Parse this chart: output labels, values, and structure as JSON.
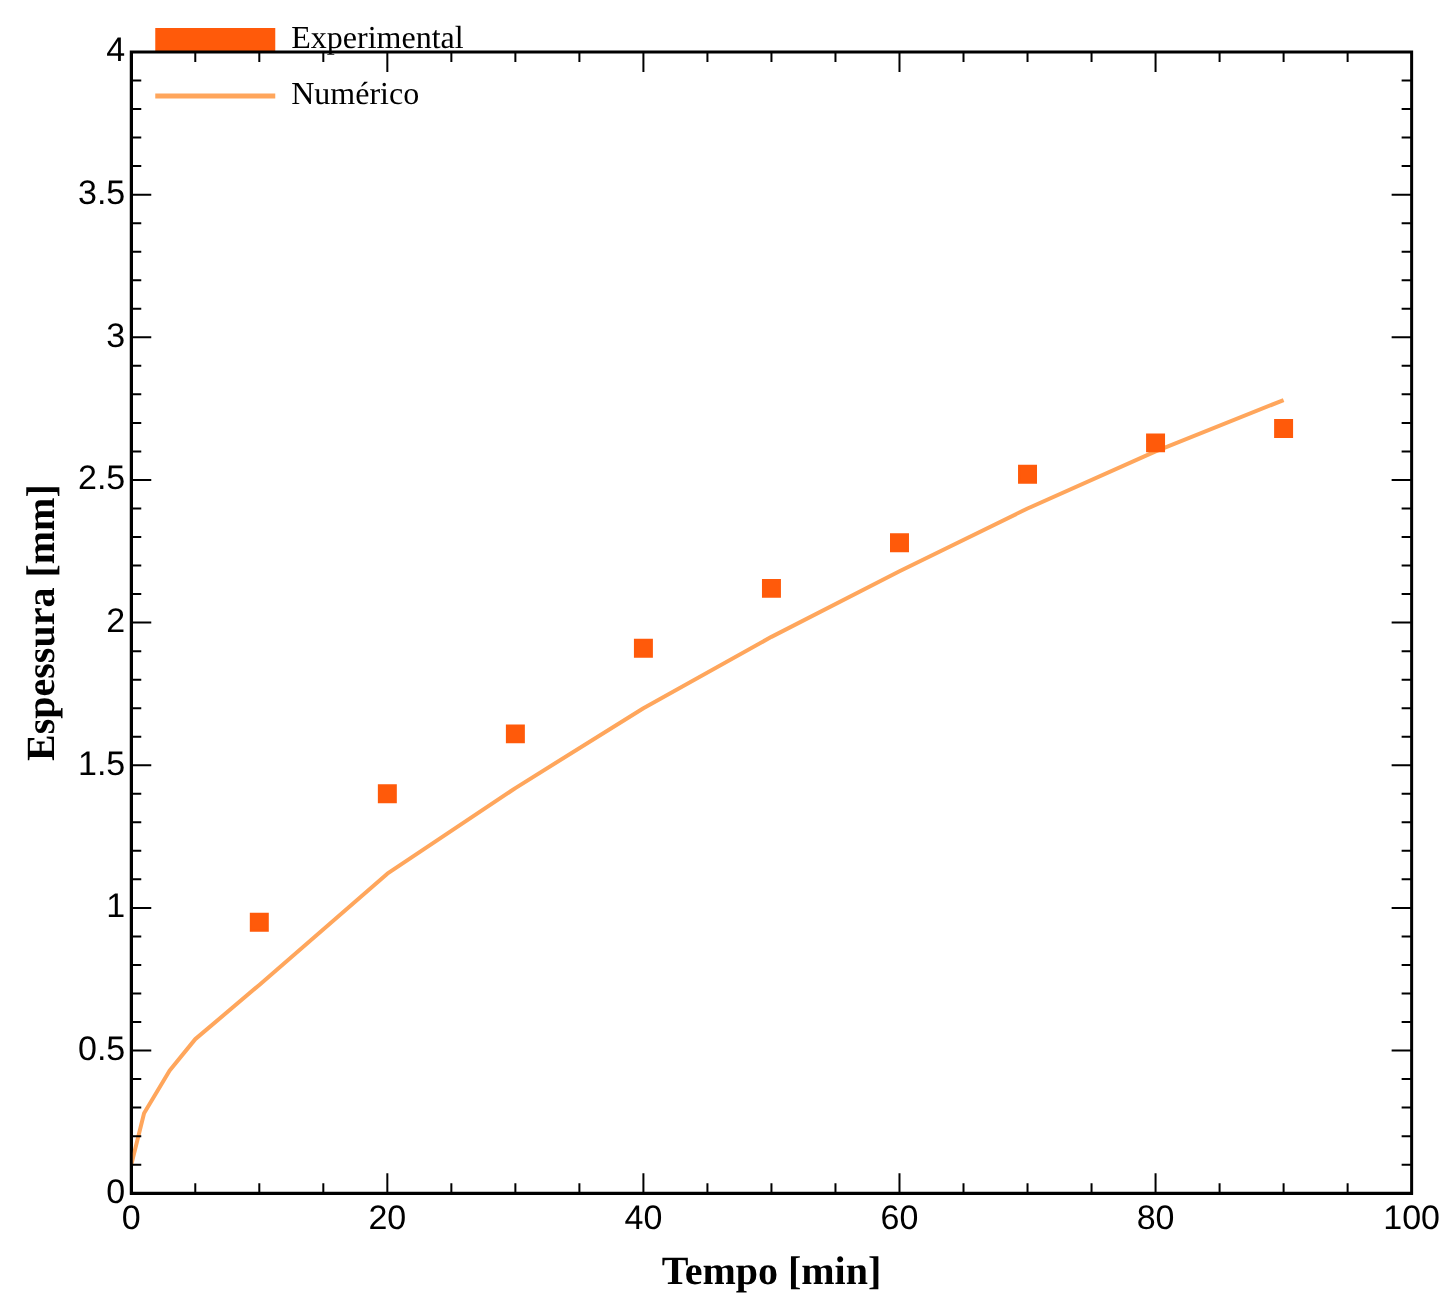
{
  "chart_data": {
    "type": "scatter",
    "xlabel": "Tempo [min]",
    "ylabel": "Espessura [mm]",
    "xlim": [
      0,
      100
    ],
    "xticks": [
      0,
      20,
      40,
      60,
      80,
      100
    ],
    "ylim": [
      0,
      4
    ],
    "yticks": [
      0,
      0.5,
      1,
      1.5,
      2,
      2.5,
      3,
      3.5,
      4
    ],
    "legend": "top left",
    "grid": false,
    "series": [
      {
        "name": "Experimental",
        "type": "scatter",
        "marker": "square",
        "color": "#ff5a0a",
        "x": [
          10,
          20,
          30,
          40,
          50,
          60,
          70,
          80,
          90
        ],
        "values": [
          0.95,
          1.4,
          1.61,
          1.91,
          2.12,
          2.28,
          2.52,
          2.63,
          2.68
        ]
      },
      {
        "name": "Numérico",
        "type": "line",
        "marker": "none",
        "line_style": "solid",
        "color": "#ffa65c",
        "x": [
          0,
          1,
          3,
          5,
          10,
          20,
          30,
          40,
          50,
          60,
          70,
          80,
          90
        ],
        "values": [
          0.1,
          0.28,
          0.43,
          0.54,
          0.73,
          1.12,
          1.42,
          1.7,
          1.95,
          2.18,
          2.4,
          2.6,
          2.78
        ]
      }
    ]
  }
}
